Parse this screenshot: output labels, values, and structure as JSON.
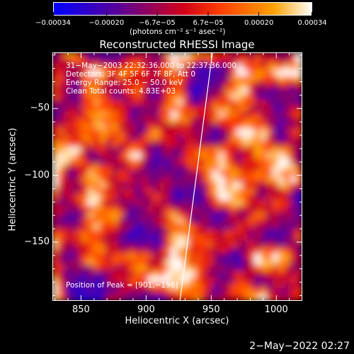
{
  "chart_data": {
    "type": "heatmap",
    "title": "Reconstructed RHESSI Image",
    "xlabel": "Heliocentric X (arcsec)",
    "ylabel": "Heliocentric Y (arcsec)",
    "xlim": [
      828,
      1020
    ],
    "ylim": [
      -194,
      -8
    ],
    "x_ticks": [
      "850",
      "900",
      "950",
      "1000"
    ],
    "x_tick_values": [
      850,
      900,
      950,
      1000
    ],
    "y_ticks": [
      "−50",
      "−100",
      "−150"
    ],
    "y_tick_values": [
      -50,
      -100,
      -150
    ],
    "colorbar": {
      "ticks": [
        "−0.00034",
        "−0.00020",
        "−6.7e−05",
        "6.7e−05",
        "0.00020",
        "0.00034"
      ],
      "tick_values": [
        -0.00034,
        -0.0002,
        -6.7e-05,
        6.7e-05,
        0.0002,
        0.00034
      ],
      "range": [
        -0.00034,
        0.00034
      ],
      "units_label": "(photons cm⁻² s⁻¹ asec⁻²)",
      "colors": [
        "#0000ff",
        "#5a0099",
        "#d0001a",
        "#ff4000",
        "#ffa000",
        "#ffffff"
      ]
    },
    "annotations": [
      "31−May−2003 22:32:36.000 to 22:37:36.000",
      "Detectors: 3F 4F 5F 6F 7F 8F, Att 0",
      "Energy Range: 25.0 − 50.0 keV",
      "Clean    Total counts: 4.83E+03"
    ],
    "peak_label": "Position of Peak = [901,−196]",
    "peak": [
      901,
      -196
    ],
    "limb_line": [
      [
        926,
        -194
      ],
      [
        951,
        -8
      ]
    ],
    "grid": false
  },
  "footer": {
    "date": "2−May−2022 02:27"
  }
}
